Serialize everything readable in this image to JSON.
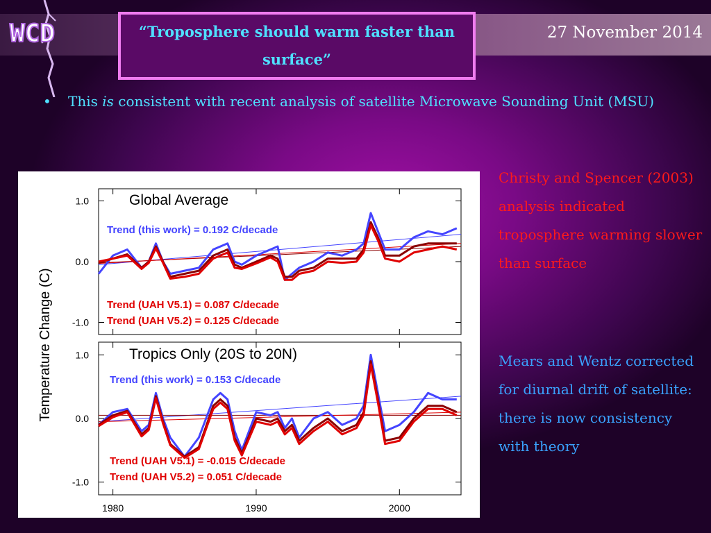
{
  "header": {
    "logo_text": "WCD",
    "title": "“Troposphere should warm faster than surface”",
    "date": "27 November 2014"
  },
  "bullet": {
    "marker": "•",
    "text_before": "This ",
    "text_emph": "is",
    "text_after": " consistent with recent analysis of satellite Microwave Sounding Unit (MSU)"
  },
  "notes": {
    "christy": "Christy and Spencer (2003) analysis indicated troposphere warming slower than surface",
    "mears": "Mears and Wentz corrected for diurnal drift of satellite: there is now consistency with theory"
  },
  "colors": {
    "title_cyan": "#4fe0ff",
    "note_red": "#ff1a1a",
    "note_blue": "#3aa2ff",
    "series_blue": "#4444ff",
    "series_red": "#e00000",
    "series_darkred": "#8b0000"
  },
  "chart_data": [
    {
      "type": "line",
      "title": "Global Average",
      "ylabel": "Temperature Change (C)",
      "xlim": [
        1979,
        2004.3
      ],
      "ylim": [
        -1.2,
        1.2
      ],
      "yticks": [
        "1.0",
        "0.0",
        "-1.0"
      ],
      "xticks": [
        "1980",
        "1990",
        "2000"
      ],
      "annotations": {
        "trend_this_work": "Trend (this work) = 0.192 C/decade",
        "trend_uah51": "Trend (UAH V5.1) = 0.087 C/decade",
        "trend_uah52": "Trend (UAH V5.2) = 0.125 C/decade"
      },
      "x": [
        1979.0,
        1980.0,
        1981.0,
        1982.0,
        1982.5,
        1983.0,
        1983.5,
        1984.0,
        1985.0,
        1986.0,
        1987.0,
        1987.5,
        1988.0,
        1988.5,
        1989.0,
        1990.0,
        1991.0,
        1991.5,
        1992.0,
        1992.5,
        1993.0,
        1994.0,
        1995.0,
        1996.0,
        1997.0,
        1997.5,
        1998.0,
        1998.5,
        1999.0,
        2000.0,
        2001.0,
        2002.0,
        2003.0,
        2004.0
      ],
      "series": [
        {
          "name": "Trend (this work)",
          "color": "#4444ff",
          "values": [
            -0.2,
            0.1,
            0.2,
            -0.1,
            0.0,
            0.3,
            0.0,
            -0.2,
            -0.15,
            -0.1,
            0.2,
            0.25,
            0.3,
            0.0,
            -0.05,
            0.1,
            0.2,
            0.25,
            -0.3,
            -0.2,
            -0.1,
            0.0,
            0.15,
            0.1,
            0.2,
            0.3,
            0.8,
            0.5,
            0.2,
            0.2,
            0.4,
            0.5,
            0.45,
            0.55
          ]
        },
        {
          "name": "Trend (UAH V5.1)",
          "color": "#8b0000",
          "values": [
            -0.02,
            0.05,
            0.12,
            -0.1,
            0.0,
            0.25,
            0.0,
            -0.25,
            -0.2,
            -0.15,
            0.1,
            0.15,
            0.2,
            -0.05,
            -0.1,
            0.0,
            0.1,
            0.05,
            -0.25,
            -0.25,
            -0.15,
            -0.1,
            0.05,
            0.05,
            0.05,
            0.2,
            0.65,
            0.4,
            0.1,
            0.1,
            0.25,
            0.3,
            0.3,
            0.3
          ]
        },
        {
          "name": "Trend (UAH V5.2)",
          "color": "#e00000",
          "values": [
            0.0,
            0.05,
            0.1,
            -0.12,
            -0.02,
            0.22,
            -0.02,
            -0.28,
            -0.25,
            -0.2,
            0.05,
            0.1,
            0.15,
            -0.1,
            -0.12,
            -0.03,
            0.07,
            0.0,
            -0.3,
            -0.3,
            -0.2,
            -0.15,
            0.0,
            -0.02,
            0.0,
            0.15,
            0.6,
            0.35,
            0.05,
            0.0,
            0.15,
            0.2,
            0.25,
            0.2
          ]
        }
      ],
      "trendlines": [
        {
          "color": "#4444ff",
          "y_start": -0.05,
          "y_end": 0.45
        },
        {
          "color": "#8b0000",
          "y_start": -0.02,
          "y_end": 0.25
        },
        {
          "color": "#e00000",
          "y_start": -0.03,
          "y_end": 0.3
        }
      ]
    },
    {
      "type": "line",
      "title": "Tropics Only (20S to 20N)",
      "ylabel": "Temperature Change (C)",
      "xlim": [
        1979,
        2004.3
      ],
      "ylim": [
        -1.2,
        1.2
      ],
      "yticks": [
        "1.0",
        "0.0",
        "-1.0"
      ],
      "xticks": [
        "1980",
        "1990",
        "2000"
      ],
      "annotations": {
        "trend_this_work": "Trend (this work) = 0.153 C/decade",
        "trend_uah51": "Trend (UAH V5.1) = -0.015 C/decade",
        "trend_uah52": "Trend (UAH V5.2) = 0.051 C/decade"
      },
      "x": [
        1979.0,
        1980.0,
        1981.0,
        1982.0,
        1982.5,
        1983.0,
        1983.5,
        1984.0,
        1985.0,
        1986.0,
        1987.0,
        1987.5,
        1988.0,
        1988.5,
        1989.0,
        1990.0,
        1991.0,
        1991.5,
        1992.0,
        1992.5,
        1993.0,
        1994.0,
        1995.0,
        1996.0,
        1997.0,
        1997.5,
        1998.0,
        1998.5,
        1999.0,
        2000.0,
        2001.0,
        2002.0,
        2003.0,
        2004.0
      ],
      "series": [
        {
          "name": "Trend (this work)",
          "color": "#4444ff",
          "values": [
            -0.1,
            0.1,
            0.15,
            -0.2,
            -0.1,
            0.4,
            0.0,
            -0.3,
            -0.6,
            -0.3,
            0.3,
            0.4,
            0.3,
            -0.2,
            -0.5,
            0.1,
            0.05,
            0.1,
            -0.15,
            0.0,
            -0.3,
            0.0,
            0.1,
            -0.1,
            0.0,
            0.2,
            1.0,
            0.4,
            -0.2,
            -0.1,
            0.1,
            0.4,
            0.3,
            0.3
          ]
        },
        {
          "name": "Trend (UAH V5.1)",
          "color": "#8b0000",
          "values": [
            -0.1,
            0.05,
            0.12,
            -0.25,
            -0.15,
            0.35,
            -0.05,
            -0.4,
            -0.6,
            -0.45,
            0.2,
            0.3,
            0.2,
            -0.3,
            -0.55,
            0.0,
            -0.05,
            0.0,
            -0.2,
            -0.1,
            -0.35,
            -0.15,
            0.0,
            -0.2,
            -0.1,
            0.1,
            0.9,
            0.3,
            -0.35,
            -0.3,
            0.0,
            0.2,
            0.2,
            0.1
          ]
        },
        {
          "name": "Trend (UAH V5.2)",
          "color": "#e00000",
          "values": [
            -0.12,
            0.02,
            0.1,
            -0.28,
            -0.18,
            0.32,
            -0.08,
            -0.42,
            -0.62,
            -0.48,
            0.15,
            0.25,
            0.15,
            -0.35,
            -0.58,
            -0.05,
            -0.1,
            -0.05,
            -0.25,
            -0.15,
            -0.4,
            -0.2,
            -0.05,
            -0.25,
            -0.15,
            0.05,
            0.85,
            0.25,
            -0.4,
            -0.35,
            -0.05,
            0.15,
            0.15,
            0.05
          ]
        }
      ],
      "trendlines": [
        {
          "color": "#4444ff",
          "y_start": -0.05,
          "y_end": 0.35
        },
        {
          "color": "#8b0000",
          "y_start": 0.05,
          "y_end": 0.05
        },
        {
          "color": "#e00000",
          "y_start": -0.05,
          "y_end": 0.1
        }
      ]
    }
  ]
}
